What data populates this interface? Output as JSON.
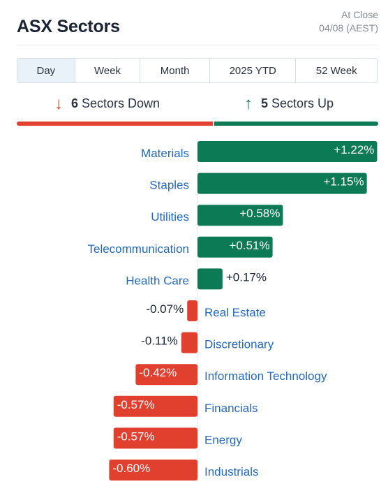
{
  "header": {
    "title": "ASX Sectors",
    "asof_line1": "At Close",
    "asof_line2": "04/08 (AEST)"
  },
  "tabs": [
    {
      "label": "Day",
      "active": true
    },
    {
      "label": "Week",
      "active": false
    },
    {
      "label": "Month",
      "active": false
    },
    {
      "label": "2025 YTD",
      "active": false
    },
    {
      "label": "52 Week",
      "active": false
    }
  ],
  "summary": {
    "down_count": "6",
    "down_text": "Sectors Down",
    "down_icon": "arrow-down-icon",
    "up_count": "5",
    "up_text": "Sectors Up",
    "up_icon": "arrow-up-icon"
  },
  "colors": {
    "up": "#0b7a55",
    "down": "#e0402d",
    "label": "#2569b8"
  },
  "chart_data": {
    "type": "bar",
    "orientation": "horizontal-diverging",
    "unit": "%",
    "categories": [
      "Materials",
      "Staples",
      "Utilities",
      "Telecommunication",
      "Health Care",
      "Real Estate",
      "Discretionary",
      "Information Technology",
      "Financials",
      "Energy",
      "Industrials"
    ],
    "values": [
      1.22,
      1.15,
      0.58,
      0.51,
      0.17,
      -0.07,
      -0.11,
      -0.42,
      -0.57,
      -0.57,
      -0.6
    ],
    "labels": [
      "+1.22%",
      "+1.15%",
      "+0.58%",
      "+0.51%",
      "+0.17%",
      "-0.07%",
      "-0.11%",
      "-0.42%",
      "-0.57%",
      "-0.57%",
      "-0.60%"
    ]
  }
}
